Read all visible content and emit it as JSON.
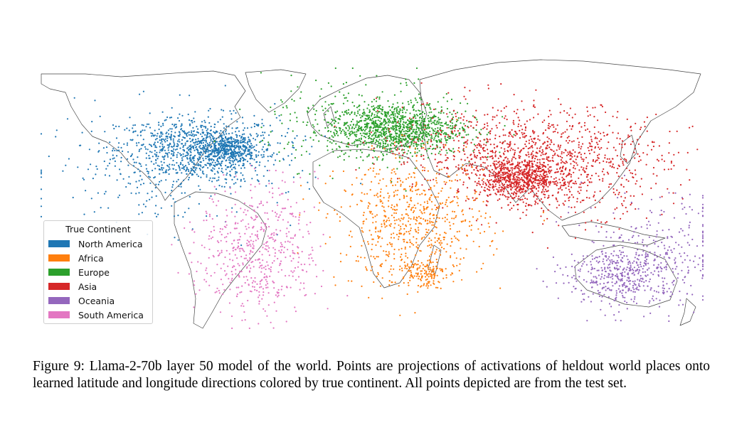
{
  "chart_data": {
    "type": "scatter",
    "legend": {
      "title": "True Continent",
      "placement": "lower-left",
      "entries": [
        {
          "name": "North America",
          "color": "#1f77b4"
        },
        {
          "name": "Africa",
          "color": "#ff7f0e"
        },
        {
          "name": "Europe",
          "color": "#2ca02c"
        },
        {
          "name": "Asia",
          "color": "#d62728"
        },
        {
          "name": "Oceania",
          "color": "#9467bd"
        },
        {
          "name": "South America",
          "color": "#e377c2"
        }
      ]
    },
    "xlim": [
      -180,
      180
    ],
    "ylim": [
      -57,
      84
    ],
    "grid": false,
    "clusters": [
      {
        "series": "North America",
        "lon": -95,
        "lat": 40,
        "spread_lon": 22,
        "spread_lat": 9,
        "n": 900
      },
      {
        "series": "North America",
        "lon": -78,
        "lat": 40,
        "spread_lon": 7,
        "spread_lat": 4,
        "n": 350
      },
      {
        "series": "North America",
        "lon": -110,
        "lat": 28,
        "spread_lon": 35,
        "spread_lat": 16,
        "n": 250
      },
      {
        "series": "Europe",
        "lon": 12,
        "lat": 51,
        "spread_lon": 18,
        "spread_lat": 7,
        "n": 1100
      },
      {
        "series": "Europe",
        "lon": 0,
        "lat": 55,
        "spread_lon": 30,
        "spread_lat": 12,
        "n": 250
      },
      {
        "series": "Asia",
        "lon": 80,
        "lat": 24,
        "spread_lon": 12,
        "spread_lat": 6,
        "n": 700
      },
      {
        "series": "Asia",
        "lon": 105,
        "lat": 33,
        "spread_lon": 28,
        "spread_lat": 14,
        "n": 800
      },
      {
        "series": "Asia",
        "lon": 55,
        "lat": 42,
        "spread_lon": 25,
        "spread_lat": 12,
        "n": 350
      },
      {
        "series": "Africa",
        "lon": 22,
        "lat": 0,
        "spread_lon": 20,
        "spread_lat": 17,
        "n": 700
      },
      {
        "series": "Africa",
        "lon": 28,
        "lat": -27,
        "spread_lon": 6,
        "spread_lat": 4,
        "n": 120
      },
      {
        "series": "Oceania",
        "lon": 138,
        "lat": -28,
        "spread_lon": 16,
        "spread_lat": 9,
        "n": 500
      },
      {
        "series": "Oceania",
        "lon": 160,
        "lat": -10,
        "spread_lon": 22,
        "spread_lat": 14,
        "n": 150
      },
      {
        "series": "South America",
        "lon": -62,
        "lat": -15,
        "spread_lon": 16,
        "spread_lat": 18,
        "n": 550
      }
    ]
  },
  "caption": {
    "label": "Figure 9:",
    "text": "Llama-2-70b layer 50 model of the world. Points are projections of activations of heldout world places onto learned latitude and longitude directions colored by true continent.  All points depicted are from the test set."
  }
}
